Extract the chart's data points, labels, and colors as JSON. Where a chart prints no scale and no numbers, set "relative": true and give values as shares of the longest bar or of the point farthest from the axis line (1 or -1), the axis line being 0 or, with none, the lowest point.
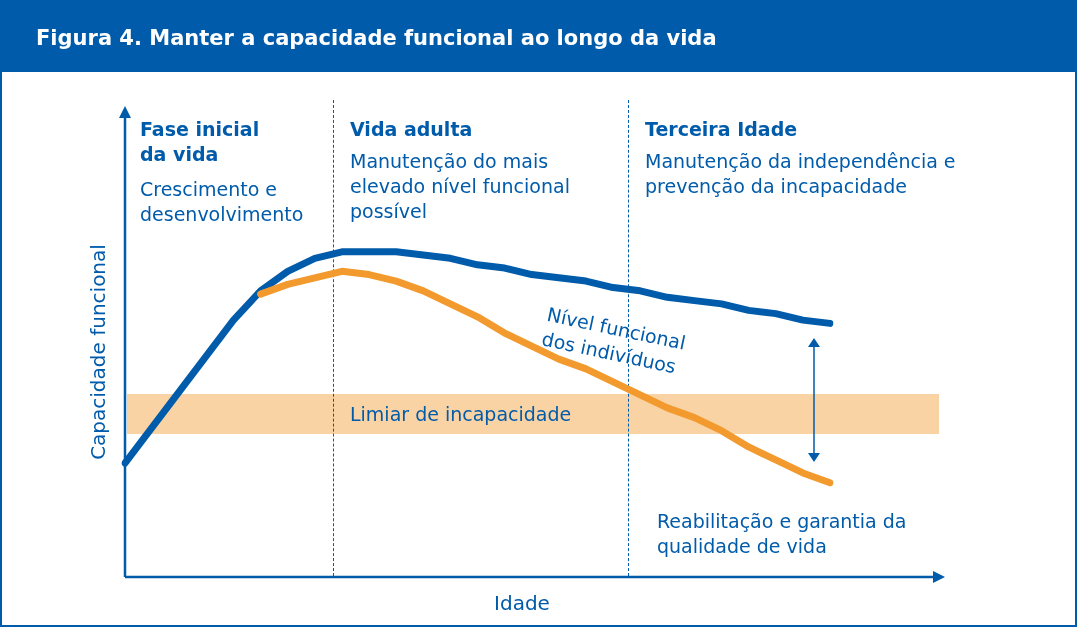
{
  "chart_data": {
    "type": "line",
    "title": "Figura 4. Manter a capacidade funcional ao longo da vida",
    "xlabel": "Idade",
    "ylabel": "Capacidade funcional",
    "relative": true,
    "marker": "none",
    "line_style": "solid",
    "categories": [
      null,
      null,
      null,
      null,
      null,
      null,
      null,
      null,
      null,
      null,
      null,
      null,
      null,
      null,
      null,
      null,
      null,
      null,
      null,
      null,
      null,
      null,
      null,
      null,
      null,
      null,
      null
    ],
    "series": [
      {
        "color": "#f39a2e",
        "values": [
          null,
          null,
          null,
          null,
          null,
          0.87,
          0.9,
          0.92,
          0.94,
          0.93,
          0.91,
          0.88,
          0.84,
          0.8,
          0.75,
          0.71,
          0.67,
          0.64,
          0.6,
          0.56,
          0.52,
          0.49,
          0.45,
          0.4,
          0.36,
          0.32,
          0.29
        ]
      },
      {
        "color": "#005baa",
        "values": [
          0.35,
          0.46,
          0.57,
          0.68,
          0.79,
          0.88,
          0.94,
          0.98,
          1,
          1,
          1,
          0.99,
          0.98,
          0.96,
          0.95,
          0.93,
          0.92,
          0.91,
          0.89,
          0.88,
          0.86,
          0.85,
          0.84,
          0.82,
          0.81,
          0.79,
          0.78
        ]
      }
    ],
    "annotations": [
      "Fase inicial da vida",
      "Crescimento e desenvolvimento",
      "Vida adulta",
      "Manutenção do mais elevado nível funcional possível",
      "Terceira Idade",
      "Manutenção da independência e prevenção da incapacidade",
      "Nível funcional dos indivíduos",
      "Reabilitação e garantia da qualidade de vida",
      "Limiar de incapacidade"
    ]
  }
}
